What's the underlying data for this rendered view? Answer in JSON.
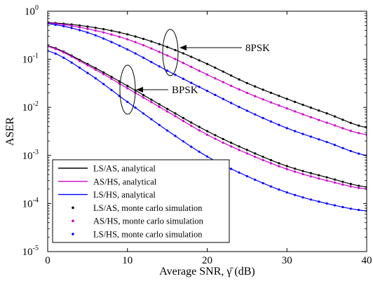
{
  "chart_data": {
    "type": "line",
    "title": "",
    "xlabel": "Average SNR, γ̄ (dB)",
    "ylabel": "ASER",
    "xlim": [
      0,
      40
    ],
    "ylim": [
      1e-05,
      1
    ],
    "yscale": "log",
    "grid": false,
    "legend_position": "lower-left",
    "x_ticks": [
      0,
      10,
      20,
      30,
      40
    ],
    "y_ticks": [
      {
        "value": 1,
        "exp": "0"
      },
      {
        "value": 0.1,
        "exp": "-1"
      },
      {
        "value": 0.01,
        "exp": "-2"
      },
      {
        "value": 0.001,
        "exp": "-3"
      },
      {
        "value": 0.0001,
        "exp": "-4"
      },
      {
        "value": 1e-05,
        "exp": "-5"
      }
    ],
    "y_tick_base": "10",
    "x": [
      0,
      5,
      10,
      15,
      20,
      25,
      30,
      35,
      40
    ],
    "series": [
      {
        "name": "LS/AS, analytical",
        "style": "line",
        "color": "#000000",
        "group": "8PSK",
        "values": [
          0.58,
          0.48,
          0.33,
          0.18,
          0.08,
          0.032,
          0.015,
          0.0075,
          0.0038
        ]
      },
      {
        "name": "AS/HS, analytical",
        "style": "line",
        "color": "#cc00cc",
        "group": "8PSK",
        "values": [
          0.57,
          0.43,
          0.26,
          0.12,
          0.048,
          0.02,
          0.0095,
          0.0048,
          0.0027
        ]
      },
      {
        "name": "LS/HS, analytical",
        "style": "line",
        "color": "#0000ff",
        "group": "8PSK",
        "values": [
          0.55,
          0.36,
          0.16,
          0.058,
          0.022,
          0.0085,
          0.0037,
          0.0019,
          0.001
        ]
      },
      {
        "name": "LS/AS, analytical",
        "style": "line",
        "color": "#000000",
        "group": "BPSK",
        "values": [
          0.19,
          0.08,
          0.028,
          0.0093,
          0.0032,
          0.0013,
          0.0006,
          0.00035,
          0.00022
        ]
      },
      {
        "name": "AS/HS, analytical",
        "style": "line",
        "color": "#cc00cc",
        "group": "BPSK",
        "values": [
          0.185,
          0.075,
          0.025,
          0.0082,
          0.0027,
          0.0011,
          0.00052,
          0.0003,
          0.0002
        ]
      },
      {
        "name": "LS/HS, analytical",
        "style": "line",
        "color": "#0000ff",
        "group": "BPSK",
        "values": [
          0.15,
          0.052,
          0.013,
          0.0033,
          0.00095,
          0.00037,
          0.00017,
          0.0001,
          7e-05
        ]
      }
    ],
    "monte_carlo_legend": [
      {
        "name": "LS/AS, monte carlo simulation",
        "color": "#000000"
      },
      {
        "name": "AS/HS, monte carlo simulation",
        "color": "#cc00cc"
      },
      {
        "name": "LS/HS, monte carlo simulation",
        "color": "#0000ff"
      }
    ],
    "annotations": [
      {
        "text": "8PSK",
        "x": 15,
        "y": 0.14
      },
      {
        "text": "BPSK",
        "x": 10.5,
        "y": 0.032
      }
    ]
  }
}
